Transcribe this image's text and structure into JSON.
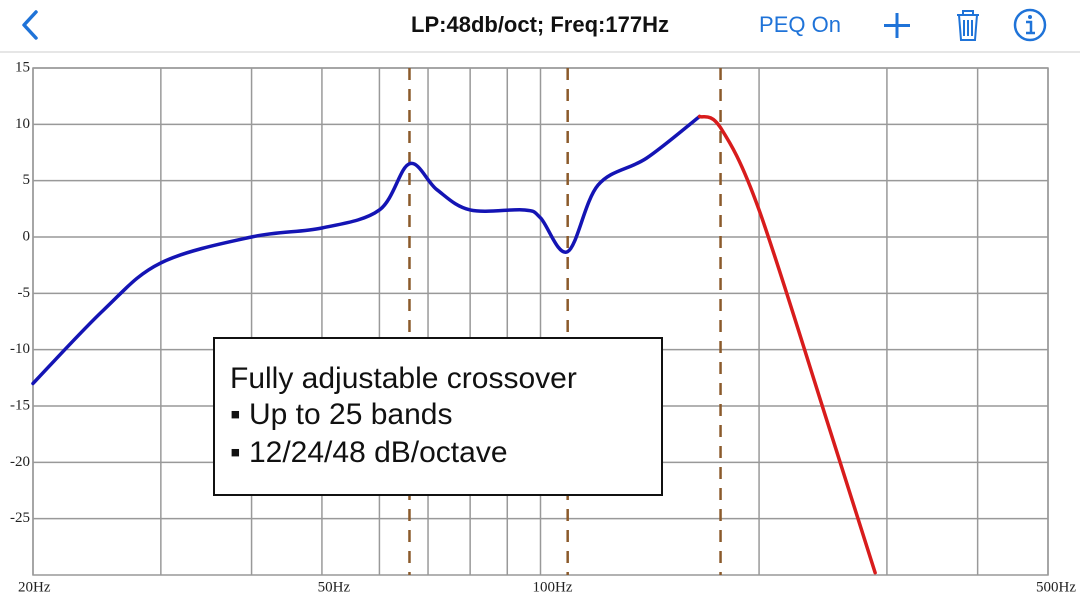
{
  "header": {
    "title": "LP:48db/oct; Freq:177Hz",
    "peq": "PEQ On"
  },
  "chart_data": {
    "type": "line",
    "xscale": "log",
    "xlim": [
      20,
      500
    ],
    "ylim": [
      -30,
      15
    ],
    "xticks": [
      {
        "value": 20,
        "label": "20Hz"
      },
      {
        "value": 50,
        "label": "50Hz"
      },
      {
        "value": 100,
        "label": "100Hz"
      },
      {
        "value": 500,
        "label": "500Hz"
      }
    ],
    "xminor": [
      30,
      40,
      60,
      70,
      80,
      90,
      200,
      300,
      400
    ],
    "yticks": [
      15,
      10,
      5,
      0,
      -5,
      -10,
      -15,
      -20,
      -25
    ],
    "grid": true,
    "crossovers": [
      66,
      109,
      177
    ],
    "crossover_color": "#8b5a2b",
    "series": [
      {
        "color": "#1414b4",
        "x": [
          20,
          25,
          30,
          40,
          50,
          60,
          66,
          72,
          80,
          95,
          100,
          109,
          120,
          140,
          165.6
        ],
        "values": [
          -13,
          -6.5,
          -2.3,
          0,
          0.8,
          2.4,
          6.5,
          4.2,
          2.4,
          2.4,
          1.7,
          -1.3,
          4.6,
          7,
          10.7
        ]
      },
      {
        "color": "#d81c1c",
        "x": [
          165.6,
          177,
          200,
          250,
          289
        ],
        "values": [
          10.7,
          9.7,
          2.4,
          -17,
          -29.8
        ]
      }
    ],
    "annotation": {
      "title": "Fully adjustable crossover",
      "lines": [
        "▪ Up to 25 bands",
        "▪ 12/24/48 dB/octave"
      ]
    }
  }
}
